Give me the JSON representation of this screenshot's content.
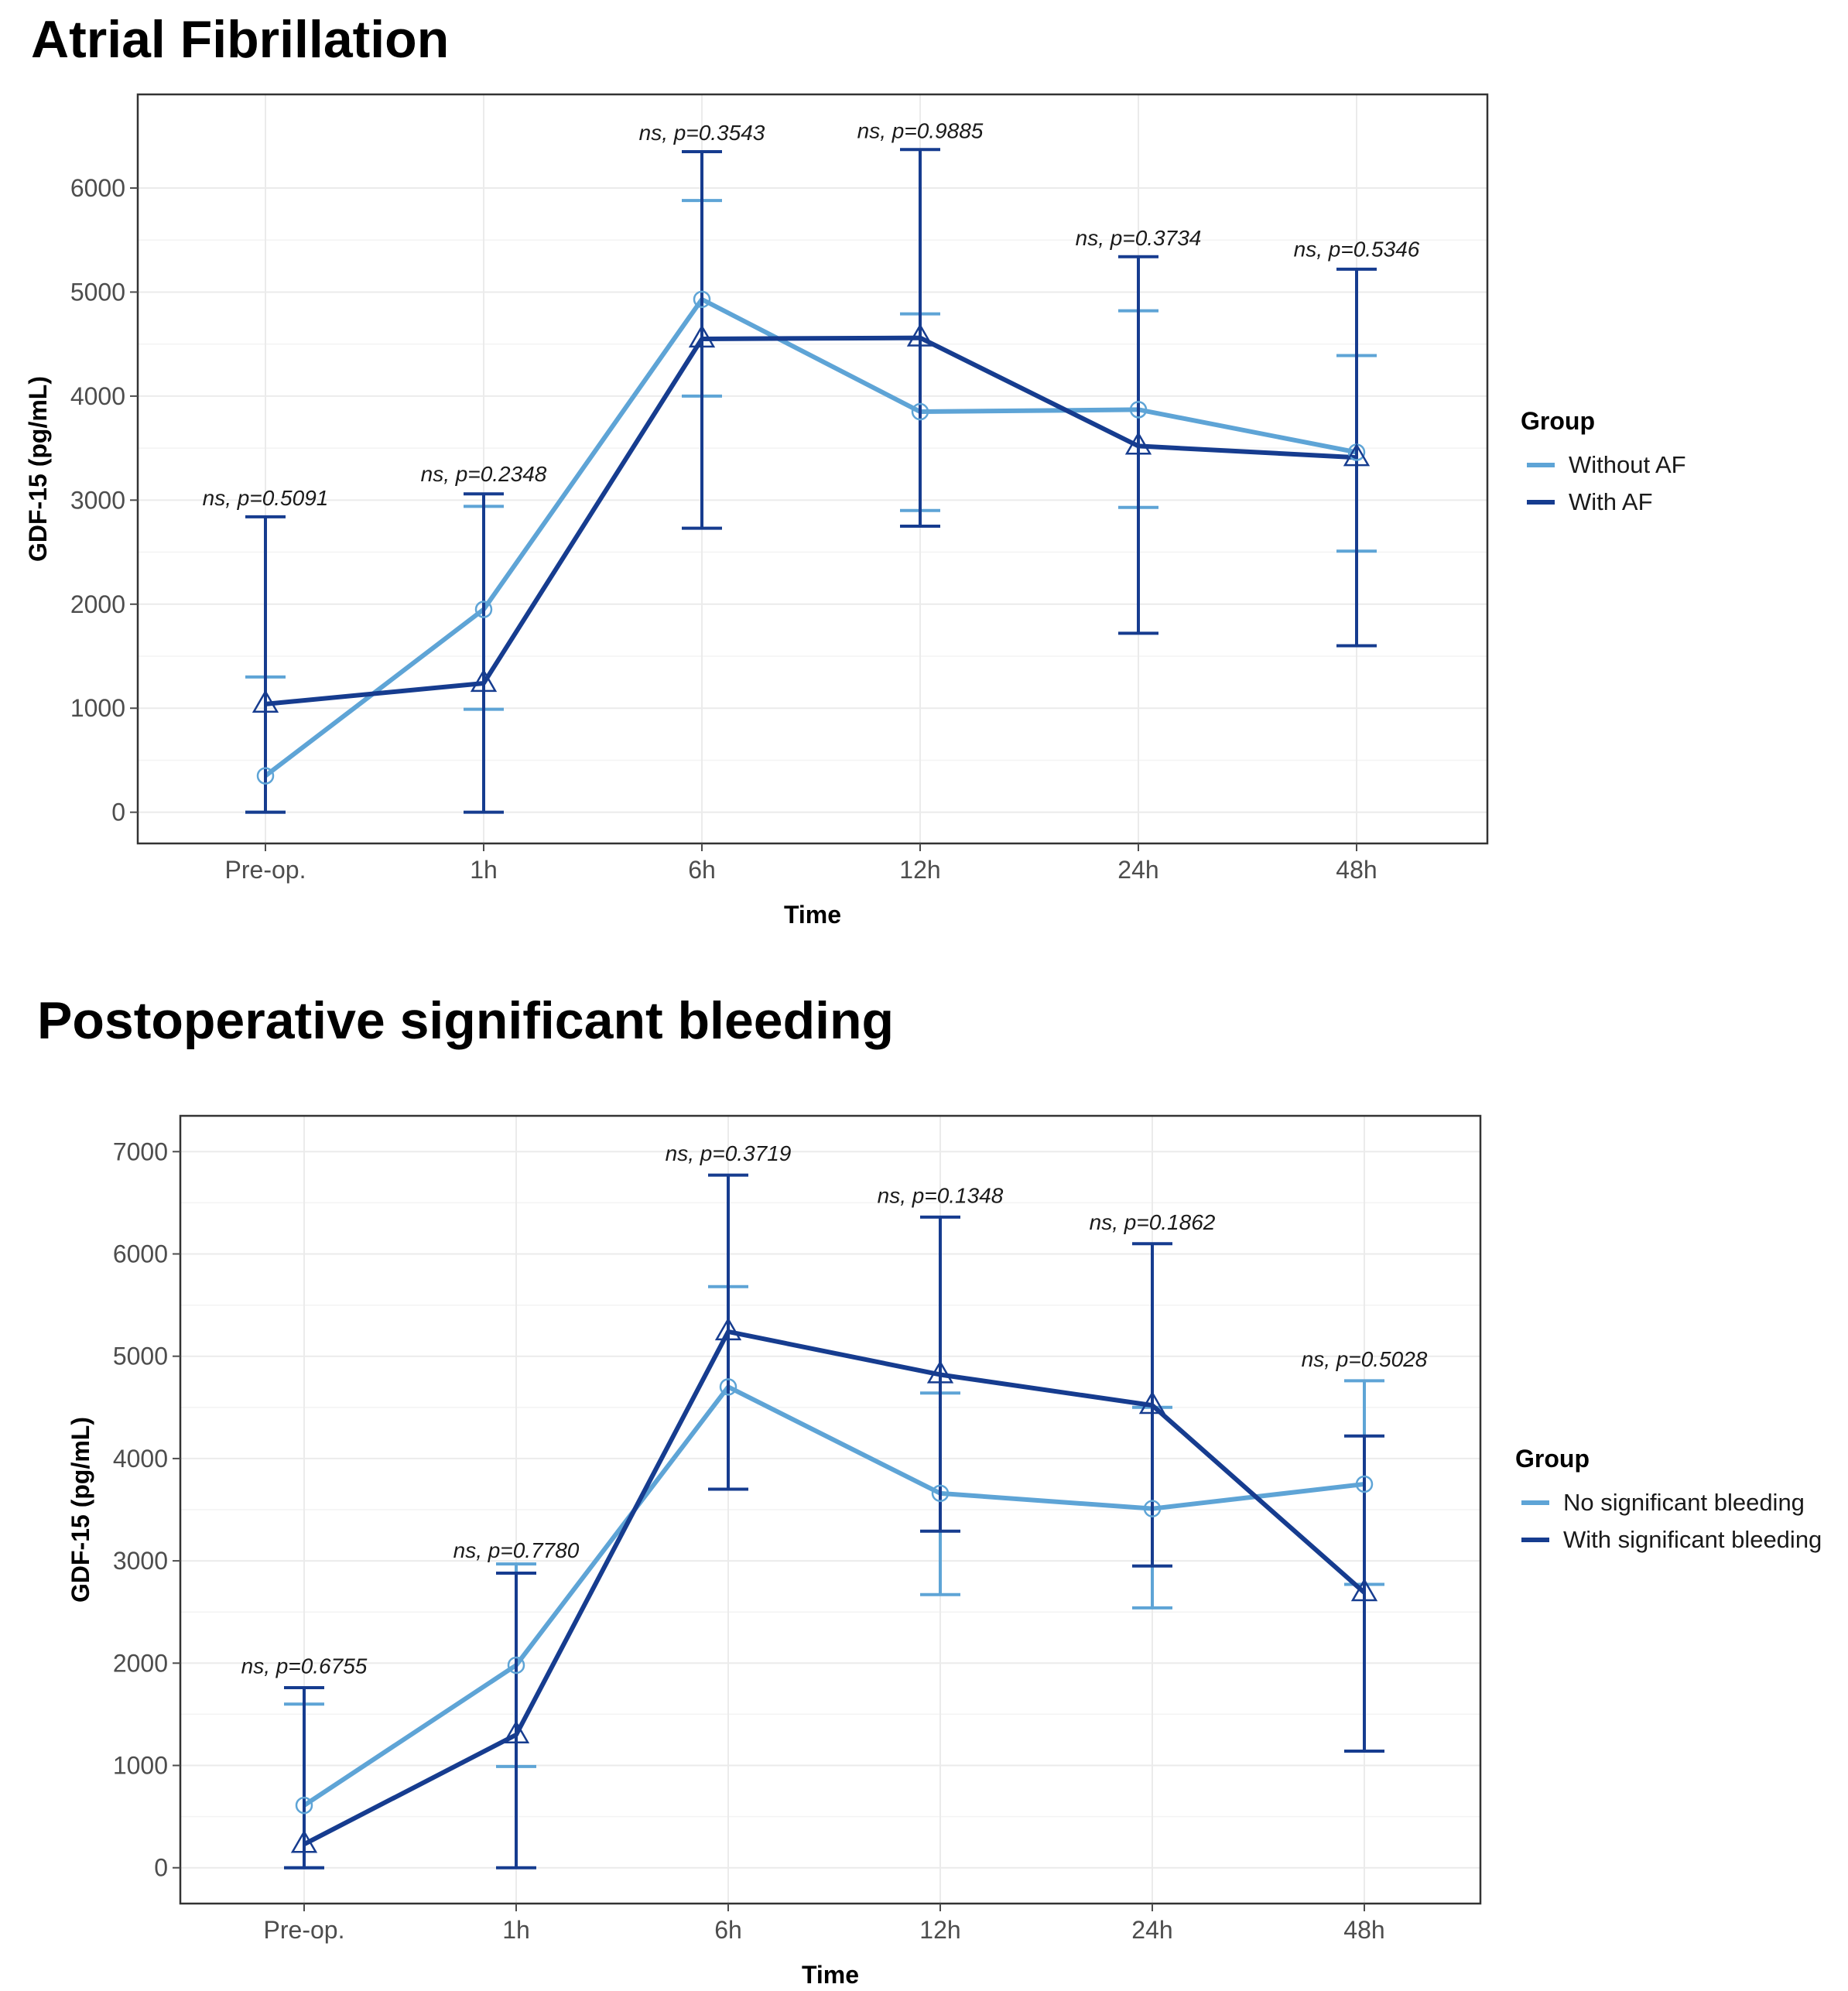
{
  "colors": {
    "light_series": "#5ea4d6",
    "dark_series": "#163c8f",
    "grid": "#ebebeb",
    "grid_minor": "#f3f3f3",
    "panel_border": "#333333",
    "tick": "#4d4d4d"
  },
  "chart_data": [
    {
      "type": "line",
      "title": "Atrial Fibrillation",
      "xlabel": "Time",
      "ylabel": "GDF-15 (pg/mL)",
      "categories": [
        "Pre-op.",
        "1h",
        "6h",
        "12h",
        "24h",
        "48h"
      ],
      "ylim": [
        -300,
        6900
      ],
      "yticks": [
        0,
        1000,
        2000,
        3000,
        4000,
        5000,
        6000
      ],
      "grid": true,
      "legend": {
        "title": "Group",
        "placement": "right"
      },
      "series": [
        {
          "name": "Without AF",
          "color_key": "light_series",
          "marker": "circle",
          "values": [
            350,
            1950,
            4930,
            3850,
            3870,
            3460
          ],
          "err_low": [
            0,
            990,
            4000,
            2900,
            2930,
            2510
          ],
          "err_high": [
            1300,
            2940,
            5880,
            4790,
            4820,
            4390
          ]
        },
        {
          "name": "With AF",
          "color_key": "dark_series",
          "marker": "triangle",
          "values": [
            1040,
            1240,
            4550,
            4560,
            3520,
            3410
          ],
          "err_low": [
            0,
            0,
            2730,
            2750,
            1720,
            1600
          ],
          "err_high": [
            2840,
            3060,
            6350,
            6370,
            5340,
            5220
          ]
        }
      ],
      "annotations": [
        {
          "label": "ns, p=0.5091",
          "category": "Pre-op.",
          "y": 2950
        },
        {
          "label": "ns, p=0.2348",
          "category": "1h",
          "y": 3180
        },
        {
          "label": "ns, p=0.3543",
          "category": "6h",
          "y": 6460
        },
        {
          "label": "ns, p=0.9885",
          "category": "12h",
          "y": 6480
        },
        {
          "label": "ns, p=0.3734",
          "category": "24h",
          "y": 5450
        },
        {
          "label": "ns, p=0.5346",
          "category": "48h",
          "y": 5340
        }
      ]
    },
    {
      "type": "line",
      "title": "Postoperative significant bleeding",
      "xlabel": "Time",
      "ylabel": "GDF-15 (pg/mL)",
      "categories": [
        "Pre-op.",
        "1h",
        "6h",
        "12h",
        "24h",
        "48h"
      ],
      "ylim": [
        -350,
        7350
      ],
      "yticks": [
        0,
        1000,
        2000,
        3000,
        4000,
        5000,
        6000,
        7000
      ],
      "grid": true,
      "legend": {
        "title": "Group",
        "placement": "right"
      },
      "series": [
        {
          "name": "No significant bleeding",
          "color_key": "light_series",
          "marker": "circle",
          "values": [
            610,
            1980,
            4700,
            3660,
            3510,
            3750
          ],
          "err_low": [
            0,
            990,
            3700,
            2670,
            2540,
            2770
          ],
          "err_high": [
            1600,
            2970,
            5680,
            4640,
            4500,
            4760
          ]
        },
        {
          "name": "With significant bleeding",
          "color_key": "dark_series",
          "marker": "triangle",
          "values": [
            230,
            1300,
            5240,
            4820,
            4520,
            2690
          ],
          "err_low": [
            0,
            0,
            3700,
            3290,
            2950,
            1140
          ],
          "err_high": [
            1760,
            2880,
            6770,
            6360,
            6100,
            4220
          ]
        }
      ],
      "annotations": [
        {
          "label": "ns, p=0.6755",
          "category": "Pre-op.",
          "y": 1900
        },
        {
          "label": "ns, p=0.7780",
          "category": "1h",
          "y": 3030
        },
        {
          "label": "ns, p=0.3719",
          "category": "6h",
          "y": 6910
        },
        {
          "label": "ns, p=0.1348",
          "category": "12h",
          "y": 6500
        },
        {
          "label": "ns, p=0.1862",
          "category": "24h",
          "y": 6240
        },
        {
          "label": "ns, p=0.5028",
          "category": "48h",
          "y": 4900
        }
      ]
    }
  ]
}
